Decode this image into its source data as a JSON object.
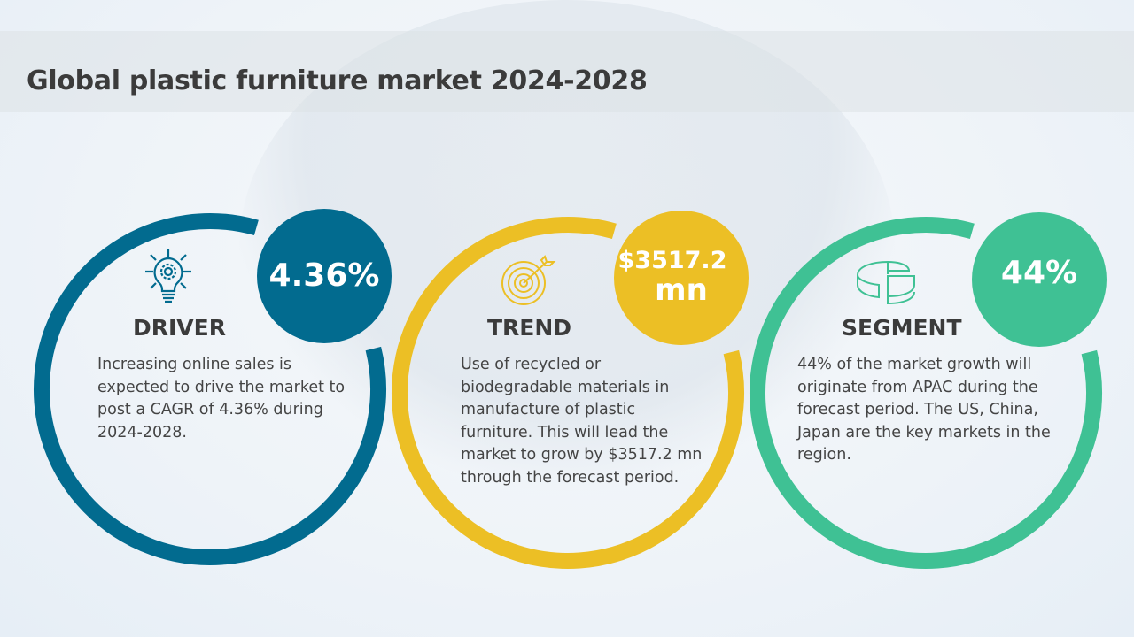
{
  "title": "Global plastic furniture market 2024-2028",
  "colors": {
    "driver": "#026b8f",
    "trend": "#ecbf25",
    "segment": "#3fc194"
  },
  "cards": [
    {
      "heading": "DRIVER",
      "icon": "lightbulb-gear-icon",
      "value": "4.36%",
      "text": "Increasing online sales is expected to drive the market to post a CAGR of 4.36% during 2024-2028."
    },
    {
      "heading": "TREND",
      "icon": "target-arrow-icon",
      "value": "$3517.2",
      "value_unit": "mn",
      "text": "Use of recycled or biodegradable materials in manufacture of plastic furniture. This will lead the market to grow by $3517.2 mn through the forecast period."
    },
    {
      "heading": "SEGMENT",
      "icon": "pie-chart-icon",
      "value": "44%",
      "text": "44% of the market growth will originate from APAC during the forecast period. The US, China, Japan are the key markets in the region."
    }
  ]
}
